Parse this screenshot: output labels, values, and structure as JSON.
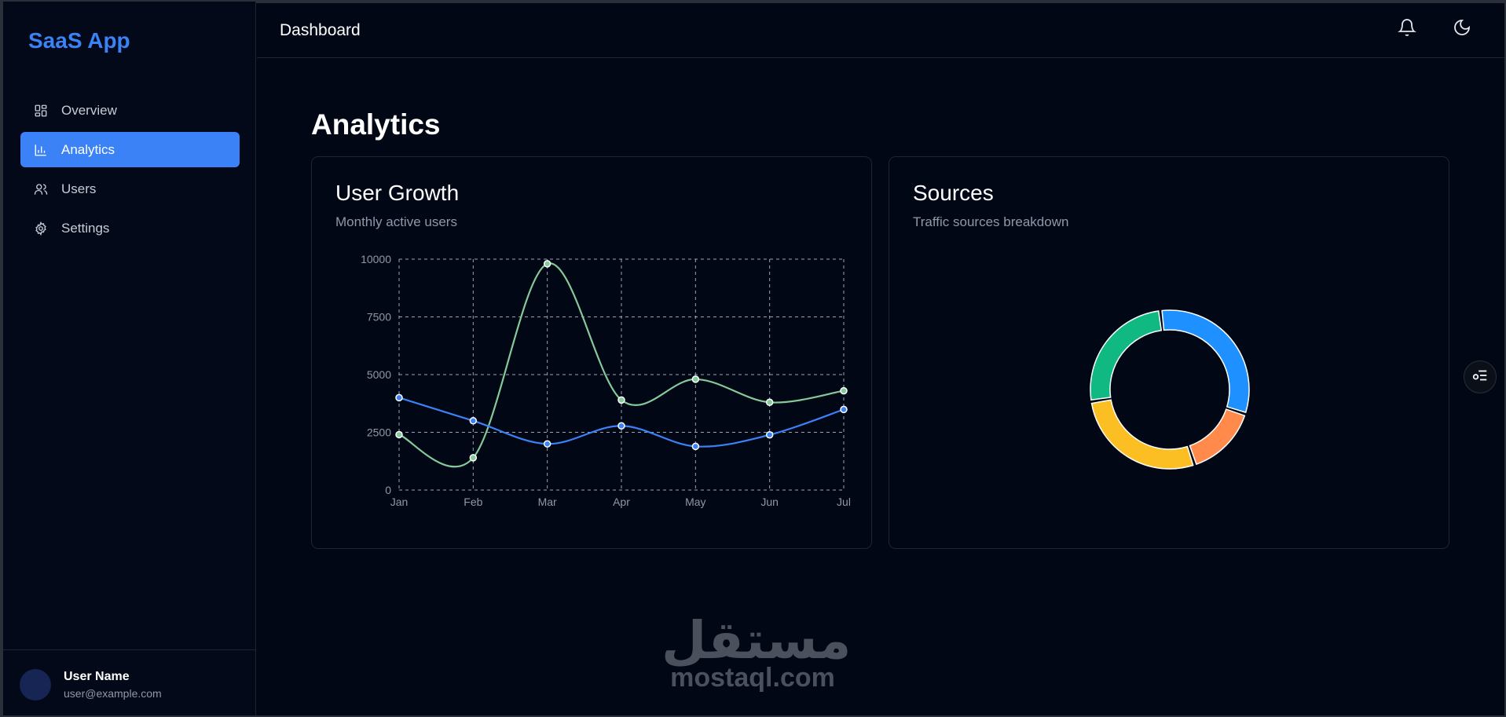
{
  "sidebar": {
    "brand": "SaaS App",
    "items": [
      {
        "label": "Overview",
        "icon": "grid-icon",
        "active": false
      },
      {
        "label": "Analytics",
        "icon": "bar-chart-icon",
        "active": true
      },
      {
        "label": "Users",
        "icon": "users-icon",
        "active": false
      },
      {
        "label": "Settings",
        "icon": "gear-icon",
        "active": false
      }
    ],
    "user": {
      "name": "User Name",
      "email": "user@example.com"
    }
  },
  "header": {
    "title": "Dashboard",
    "actions": [
      {
        "icon": "bell-icon"
      },
      {
        "icon": "moon-icon"
      }
    ]
  },
  "main": {
    "title": "Analytics",
    "cards": [
      {
        "title": "User Growth",
        "subtitle": "Monthly active users"
      },
      {
        "title": "Sources",
        "subtitle": "Traffic sources breakdown"
      }
    ]
  },
  "colors": {
    "accent": "#3b82f6",
    "green_series": "#86c99a",
    "blue_series": "#3b82f6",
    "donut": [
      "#1e90ff",
      "#ff8a4c",
      "#fbbf24",
      "#10b981"
    ]
  },
  "chart_data": [
    {
      "type": "line",
      "categories": [
        "Jan",
        "Feb",
        "Mar",
        "Apr",
        "May",
        "Jun",
        "Jul"
      ],
      "series": [
        {
          "values": [
            2400,
            1400,
            9800,
            3900,
            4800,
            3800,
            4300
          ],
          "color": "#86c99a"
        },
        {
          "values": [
            4000,
            3000,
            2000,
            2780,
            1890,
            2390,
            3490
          ],
          "color": "#3b82f6"
        }
      ],
      "yticks": [
        0,
        2500,
        5000,
        7500,
        10000
      ],
      "ylim": [
        0,
        10000
      ],
      "grid": true,
      "smooth": true
    },
    {
      "type": "pie",
      "donut": true,
      "values": [
        30,
        14,
        26,
        24
      ],
      "colors": [
        "#1e90ff",
        "#ff8a4c",
        "#fbbf24",
        "#10b981"
      ]
    }
  ],
  "watermark": {
    "arabic": "مستقل",
    "latin": "mostaql.com"
  }
}
